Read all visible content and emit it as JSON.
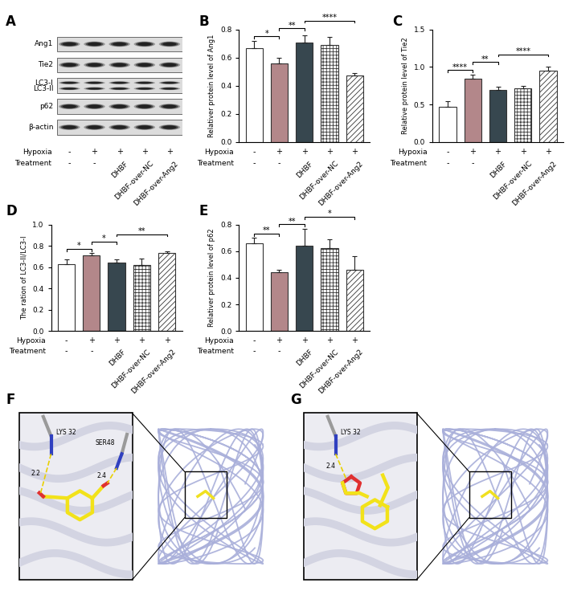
{
  "conditions": {
    "rows": [
      {
        "name": "Hypoxia",
        "values": [
          "-",
          "+",
          "+",
          "+",
          "+"
        ]
      },
      {
        "name": "Treatment",
        "values": [
          "-",
          "-",
          "DHBF",
          "DHBF-over-NC",
          "DHBF-over-Ang2"
        ]
      }
    ]
  },
  "blot": {
    "panel": "A",
    "rows": [
      [
        "Ang1"
      ],
      [
        "Tie2"
      ],
      [
        "LC3-I",
        "LC3-II"
      ],
      [
        "p62"
      ],
      [
        "β-actin"
      ]
    ]
  },
  "chart_data": [
    {
      "panel": "B",
      "type": "bar",
      "y_label": "Relativer protein level of Ang1",
      "categories": [
        null,
        null,
        null,
        null,
        null
      ],
      "values": [
        0.67,
        0.56,
        0.71,
        0.69,
        0.47
      ],
      "errors": [
        0.05,
        0.04,
        0.05,
        0.06,
        0.02
      ],
      "colors": [
        "#ffffff",
        "#b3878a",
        "#37474f",
        "#ffffff",
        "#ffffff"
      ],
      "ylim": [
        0.0,
        0.8
      ],
      "yticks": [
        0.0,
        0.2,
        0.4,
        0.6,
        0.8
      ],
      "significance": [
        {
          "from": 0,
          "to": 1,
          "label": "*"
        },
        {
          "from": 1,
          "to": 2,
          "label": "**"
        },
        {
          "from": 2,
          "to": 4,
          "label": "****"
        }
      ]
    },
    {
      "panel": "C",
      "type": "bar",
      "y_label": "Relative protein level of Tie2",
      "categories": [
        null,
        null,
        null,
        null,
        null
      ],
      "values": [
        0.47,
        0.84,
        0.69,
        0.72,
        0.95
      ],
      "errors": [
        0.07,
        0.06,
        0.05,
        0.03,
        0.05
      ],
      "colors": [
        "#ffffff",
        "#b3878a",
        "#37474f",
        "#ffffff",
        "#ffffff"
      ],
      "ylim": [
        0.0,
        1.5
      ],
      "yticks": [
        0.0,
        0.5,
        1.0,
        1.5
      ],
      "significance": [
        {
          "from": 0,
          "to": 1,
          "label": "****"
        },
        {
          "from": 1,
          "to": 2,
          "label": "**"
        },
        {
          "from": 2,
          "to": 4,
          "label": "****"
        }
      ]
    },
    {
      "panel": "D",
      "type": "bar",
      "y_label": "The ration of LC3-II/LC3-I",
      "categories": [
        null,
        null,
        null,
        null,
        null
      ],
      "values": [
        0.63,
        0.71,
        0.64,
        0.62,
        0.73
      ],
      "errors": [
        0.04,
        0.02,
        0.03,
        0.06,
        0.02
      ],
      "colors": [
        "#ffffff",
        "#b3878a",
        "#37474f",
        "#ffffff",
        "#ffffff"
      ],
      "ylim": [
        0.0,
        1.0
      ],
      "yticks": [
        0.0,
        0.2,
        0.4,
        0.6,
        0.8,
        1.0
      ],
      "significance": [
        {
          "from": 0,
          "to": 1,
          "label": "*"
        },
        {
          "from": 1,
          "to": 2,
          "label": "*"
        },
        {
          "from": 2,
          "to": 4,
          "label": "**"
        }
      ]
    },
    {
      "panel": "E",
      "type": "bar",
      "y_label": "Relativer protein level of p62",
      "categories": [
        null,
        null,
        null,
        null,
        null
      ],
      "values": [
        0.66,
        0.44,
        0.64,
        0.62,
        0.46
      ],
      "errors": [
        0.04,
        0.02,
        0.13,
        0.07,
        0.1
      ],
      "colors": [
        "#ffffff",
        "#b3878a",
        "#37474f",
        "#ffffff",
        "#ffffff"
      ],
      "ylim": [
        0.0,
        0.8
      ],
      "yticks": [
        0.0,
        0.2,
        0.4,
        0.6,
        0.8
      ],
      "significance": [
        {
          "from": 0,
          "to": 1,
          "label": "**"
        },
        {
          "from": 1,
          "to": 2,
          "label": "**"
        },
        {
          "from": 2,
          "to": 4,
          "label": "*"
        }
      ]
    }
  ],
  "docking": [
    {
      "panel": "F",
      "residues": [
        "LYS 32",
        "SER48"
      ],
      "distances": [
        2.2,
        2.4
      ]
    },
    {
      "panel": "G",
      "residues": [
        "LYS 32"
      ],
      "distances": [
        2.4
      ]
    }
  ]
}
